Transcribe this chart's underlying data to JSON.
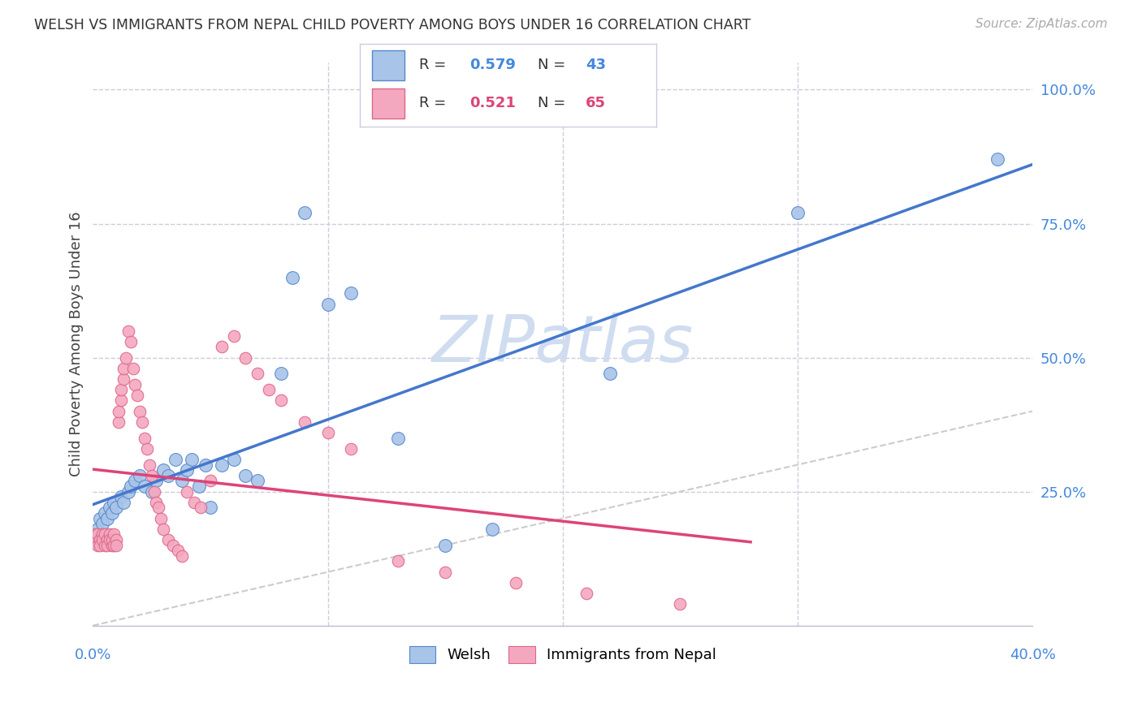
{
  "title": "WELSH VS IMMIGRANTS FROM NEPAL CHILD POVERTY AMONG BOYS UNDER 16 CORRELATION CHART",
  "source": "Source: ZipAtlas.com",
  "ylabel": "Child Poverty Among Boys Under 16",
  "welsh_R": 0.579,
  "welsh_N": 43,
  "nepal_R": 0.521,
  "nepal_N": 65,
  "welsh_color": "#a8c4e8",
  "nepal_color": "#f4a8c0",
  "welsh_edge_color": "#5588cc",
  "nepal_edge_color": "#dd6688",
  "welsh_line_color": "#4477cc",
  "nepal_line_color": "#dd4477",
  "grid_color": "#ccccdd",
  "watermark": "ZIPatlas",
  "watermark_color": "#d0ddf0",
  "diag_line_color": "#cccccc",
  "xlim": [
    0.0,
    0.4
  ],
  "ylim": [
    0.0,
    1.05
  ],
  "ytick_values": [
    0.0,
    0.25,
    0.5,
    0.75,
    1.0
  ],
  "ytick_labels": [
    "",
    "25.0%",
    "50.0%",
    "75.0%",
    "100.0%"
  ],
  "welsh_x": [
    0.001,
    0.002,
    0.003,
    0.004,
    0.005,
    0.006,
    0.007,
    0.008,
    0.009,
    0.01,
    0.012,
    0.013,
    0.015,
    0.016,
    0.018,
    0.02,
    0.022,
    0.025,
    0.027,
    0.03,
    0.032,
    0.035,
    0.038,
    0.04,
    0.042,
    0.045,
    0.048,
    0.05,
    0.055,
    0.06,
    0.065,
    0.07,
    0.08,
    0.085,
    0.09,
    0.1,
    0.11,
    0.13,
    0.15,
    0.17,
    0.22,
    0.3,
    0.385
  ],
  "welsh_y": [
    0.16,
    0.18,
    0.2,
    0.19,
    0.21,
    0.2,
    0.22,
    0.21,
    0.23,
    0.22,
    0.24,
    0.23,
    0.25,
    0.26,
    0.27,
    0.28,
    0.26,
    0.25,
    0.27,
    0.29,
    0.28,
    0.31,
    0.27,
    0.29,
    0.31,
    0.26,
    0.3,
    0.22,
    0.3,
    0.31,
    0.28,
    0.27,
    0.47,
    0.65,
    0.77,
    0.6,
    0.62,
    0.35,
    0.15,
    0.18,
    0.47,
    0.77,
    0.87
  ],
  "nepal_x": [
    0.001,
    0.001,
    0.002,
    0.002,
    0.003,
    0.003,
    0.004,
    0.004,
    0.005,
    0.005,
    0.006,
    0.006,
    0.007,
    0.007,
    0.008,
    0.008,
    0.009,
    0.009,
    0.01,
    0.01,
    0.011,
    0.011,
    0.012,
    0.012,
    0.013,
    0.013,
    0.014,
    0.015,
    0.016,
    0.017,
    0.018,
    0.019,
    0.02,
    0.021,
    0.022,
    0.023,
    0.024,
    0.025,
    0.026,
    0.027,
    0.028,
    0.029,
    0.03,
    0.032,
    0.034,
    0.036,
    0.038,
    0.04,
    0.043,
    0.046,
    0.05,
    0.055,
    0.06,
    0.065,
    0.07,
    0.075,
    0.08,
    0.09,
    0.1,
    0.11,
    0.13,
    0.15,
    0.18,
    0.21,
    0.25
  ],
  "nepal_y": [
    0.17,
    0.16,
    0.15,
    0.17,
    0.16,
    0.15,
    0.17,
    0.16,
    0.15,
    0.17,
    0.16,
    0.15,
    0.17,
    0.16,
    0.15,
    0.16,
    0.17,
    0.15,
    0.16,
    0.15,
    0.38,
    0.4,
    0.42,
    0.44,
    0.46,
    0.48,
    0.5,
    0.55,
    0.53,
    0.48,
    0.45,
    0.43,
    0.4,
    0.38,
    0.35,
    0.33,
    0.3,
    0.28,
    0.25,
    0.23,
    0.22,
    0.2,
    0.18,
    0.16,
    0.15,
    0.14,
    0.13,
    0.25,
    0.23,
    0.22,
    0.27,
    0.52,
    0.54,
    0.5,
    0.47,
    0.44,
    0.42,
    0.38,
    0.36,
    0.33,
    0.12,
    0.1,
    0.08,
    0.06,
    0.04
  ]
}
